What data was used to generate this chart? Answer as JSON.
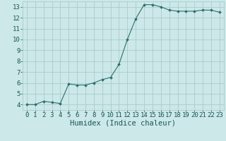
{
  "x": [
    0,
    1,
    2,
    3,
    4,
    5,
    6,
    7,
    8,
    9,
    10,
    11,
    12,
    13,
    14,
    15,
    16,
    17,
    18,
    19,
    20,
    21,
    22,
    23
  ],
  "y": [
    4.0,
    4.0,
    4.3,
    4.2,
    4.1,
    5.9,
    5.8,
    5.8,
    6.0,
    6.3,
    6.5,
    7.7,
    10.0,
    11.9,
    13.2,
    13.2,
    13.0,
    12.7,
    12.6,
    12.6,
    12.6,
    12.7,
    12.7,
    12.5
  ],
  "line_color": "#2d6e6e",
  "marker": "D",
  "marker_size": 2.0,
  "background_color": "#cce8e8",
  "grid_color": "#aacccc",
  "xlabel": "Humidex (Indice chaleur)",
  "xlabel_fontsize": 7.5,
  "xlabel_color": "#1a5555",
  "tick_color": "#1a5555",
  "tick_fontsize": 6.5,
  "ylim": [
    3.5,
    13.5
  ],
  "xlim": [
    -0.5,
    23.5
  ],
  "yticks": [
    4,
    5,
    6,
    7,
    8,
    9,
    10,
    11,
    12,
    13
  ],
  "xticks": [
    0,
    1,
    2,
    3,
    4,
    5,
    6,
    7,
    8,
    9,
    10,
    11,
    12,
    13,
    14,
    15,
    16,
    17,
    18,
    19,
    20,
    21,
    22,
    23
  ]
}
